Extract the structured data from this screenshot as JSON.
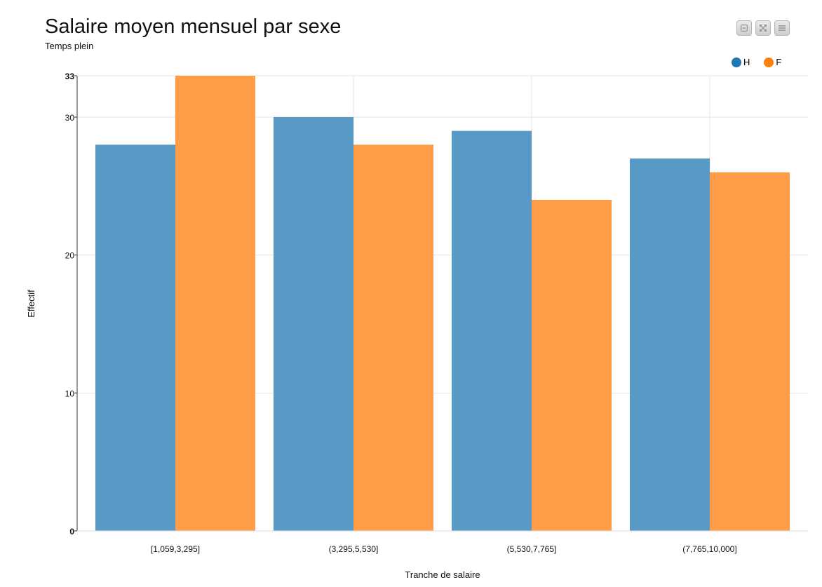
{
  "chart_data": {
    "type": "bar",
    "title": "Salaire moyen mensuel par sexe",
    "subtitle": "Temps plein",
    "xlabel": "Tranche de salaire",
    "ylabel": "Effectif",
    "categories": [
      "[1,059,3,295]",
      "(3,295,5,530]",
      "(5,530,7,765]",
      "(7,765,10,000]"
    ],
    "series": [
      {
        "name": "H",
        "color": "#5899c6",
        "values": [
          28,
          30,
          29,
          27
        ]
      },
      {
        "name": "F",
        "color": "#ff9c48",
        "values": [
          33,
          28,
          24,
          26
        ]
      }
    ],
    "ylim": [
      0,
      33
    ],
    "yticks": [
      0,
      10,
      20,
      30,
      33
    ],
    "grid": true,
    "legend_position": "top-right"
  },
  "legend": [
    {
      "label": "H",
      "color": "#1f77b4"
    },
    {
      "label": "F",
      "color": "#ff7f0e"
    }
  ],
  "toolbar": [
    {
      "icon": "minimize-icon"
    },
    {
      "icon": "fullscreen-icon"
    },
    {
      "icon": "menu-icon"
    }
  ]
}
